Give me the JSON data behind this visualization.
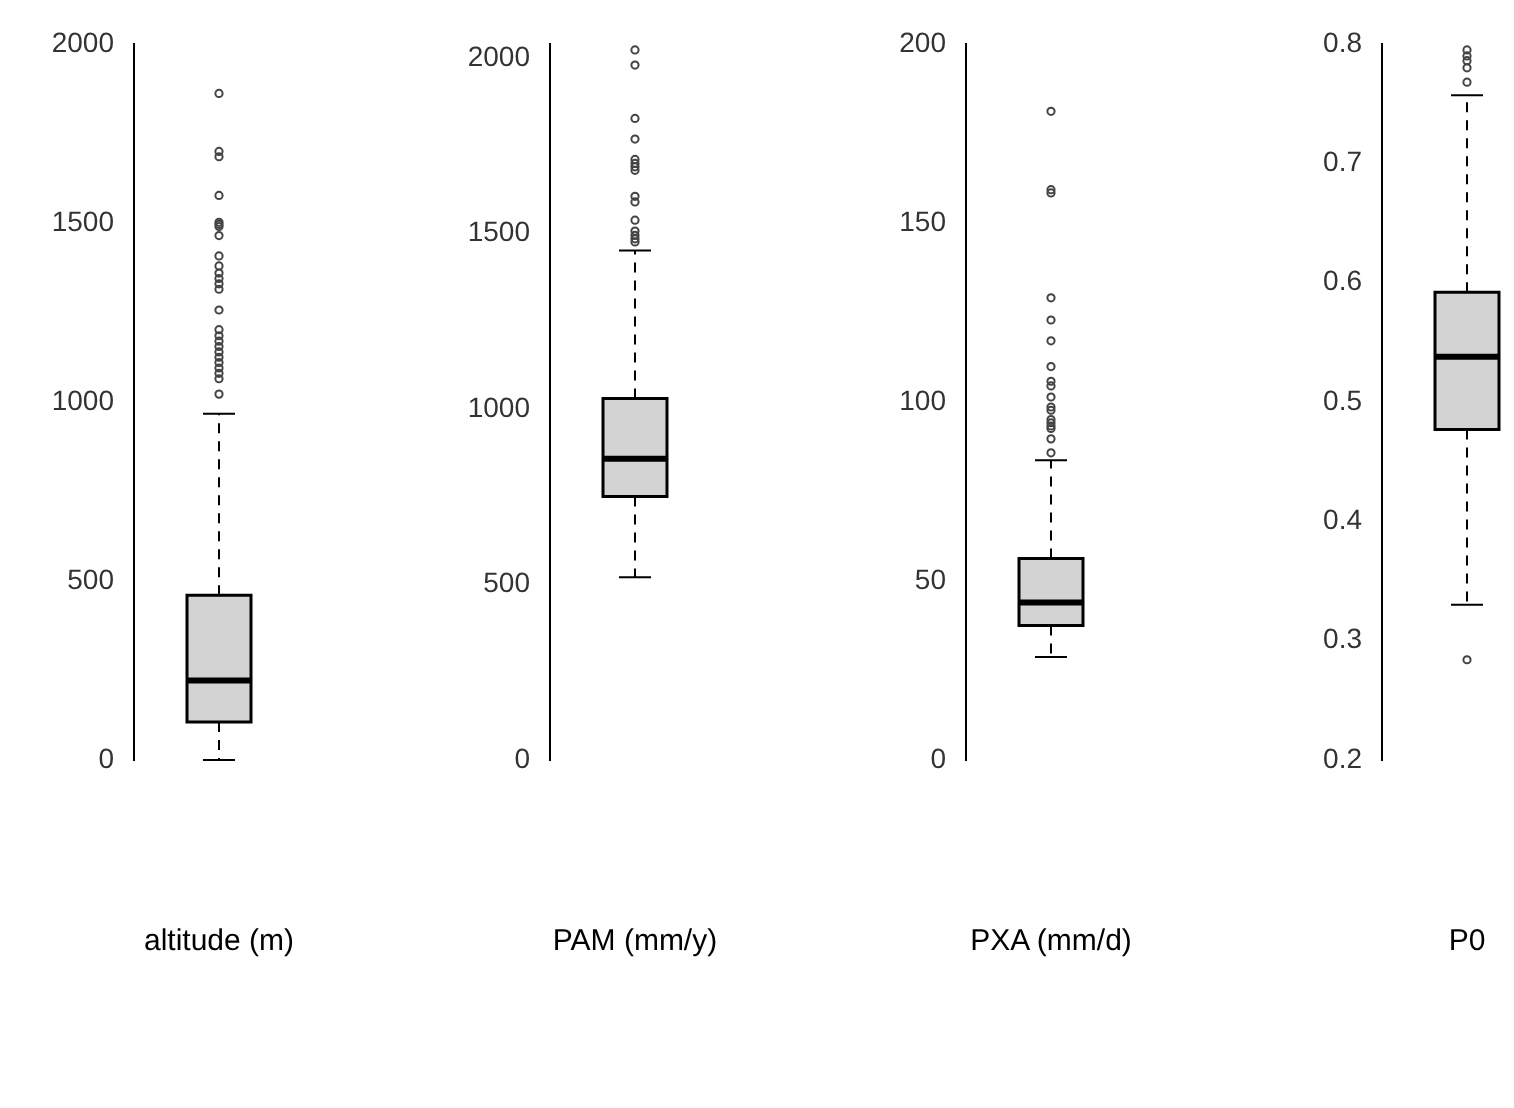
{
  "chart_data": [
    {
      "type": "box",
      "categories": [
        "altitude (m)"
      ],
      "color": "#d3d3d3",
      "marker": "circle",
      "ylim": [
        0,
        2000
      ],
      "yticks": [
        0,
        500,
        1000,
        1500,
        2000
      ],
      "boxes": [
        {
          "low": 0,
          "q1": 106,
          "median": 222,
          "q3": 460,
          "high": 967,
          "outliers": [
            1862,
            1700,
            1685,
            1577,
            1502,
            1496,
            1490,
            1465,
            1408,
            1380,
            1360,
            1345,
            1330,
            1315,
            1257,
            1202,
            1185,
            1170,
            1155,
            1140,
            1125,
            1110,
            1095,
            1080,
            1065,
            1022
          ]
        }
      ]
    },
    {
      "type": "box",
      "categories": [
        "PAM (mm/y)"
      ],
      "color": "#d3d3d3",
      "marker": "circle",
      "ylim": [
        0,
        2040
      ],
      "yticks": [
        0,
        500,
        1000,
        1500,
        2000
      ],
      "boxes": [
        {
          "low": 521,
          "q1": 751,
          "median": 858,
          "q3": 1030,
          "high": 1452,
          "outliers": [
            2023,
            1980,
            1828,
            1769,
            1711,
            1700,
            1690,
            1680,
            1606,
            1590,
            1538,
            1507,
            1495,
            1485,
            1476
          ]
        }
      ]
    },
    {
      "type": "box",
      "categories": [
        "PXA (mm/d)"
      ],
      "color": "#d3d3d3",
      "marker": "circle",
      "ylim": [
        0,
        200
      ],
      "yticks": [
        0,
        50,
        100,
        150,
        200
      ],
      "boxes": [
        {
          "low": 28.8,
          "q1": 37.6,
          "median": 44,
          "q3": 56.3,
          "high": 83.7,
          "outliers": [
            181.2,
            159.3,
            158.4,
            129.1,
            122.9,
            117.1,
            109.9,
            105.8,
            104.5,
            101.4,
            98.6,
            97.7,
            95.1,
            94.2,
            93.3,
            92.6,
            89.7,
            85.8
          ]
        }
      ]
    },
    {
      "type": "box",
      "categories": [
        "P0"
      ],
      "color": "#d3d3d3",
      "marker": "circle",
      "ylim": [
        0.2,
        0.8
      ],
      "yticks": [
        0.2,
        0.3,
        0.4,
        0.5,
        0.6,
        0.7,
        0.8
      ],
      "boxes": [
        {
          "low": 0.33,
          "q1": 0.477,
          "median": 0.538,
          "q3": 0.592,
          "high": 0.757,
          "outliers": [
            0.795,
            0.79,
            0.786,
            0.78,
            0.768,
            0.284
          ]
        }
      ]
    }
  ]
}
